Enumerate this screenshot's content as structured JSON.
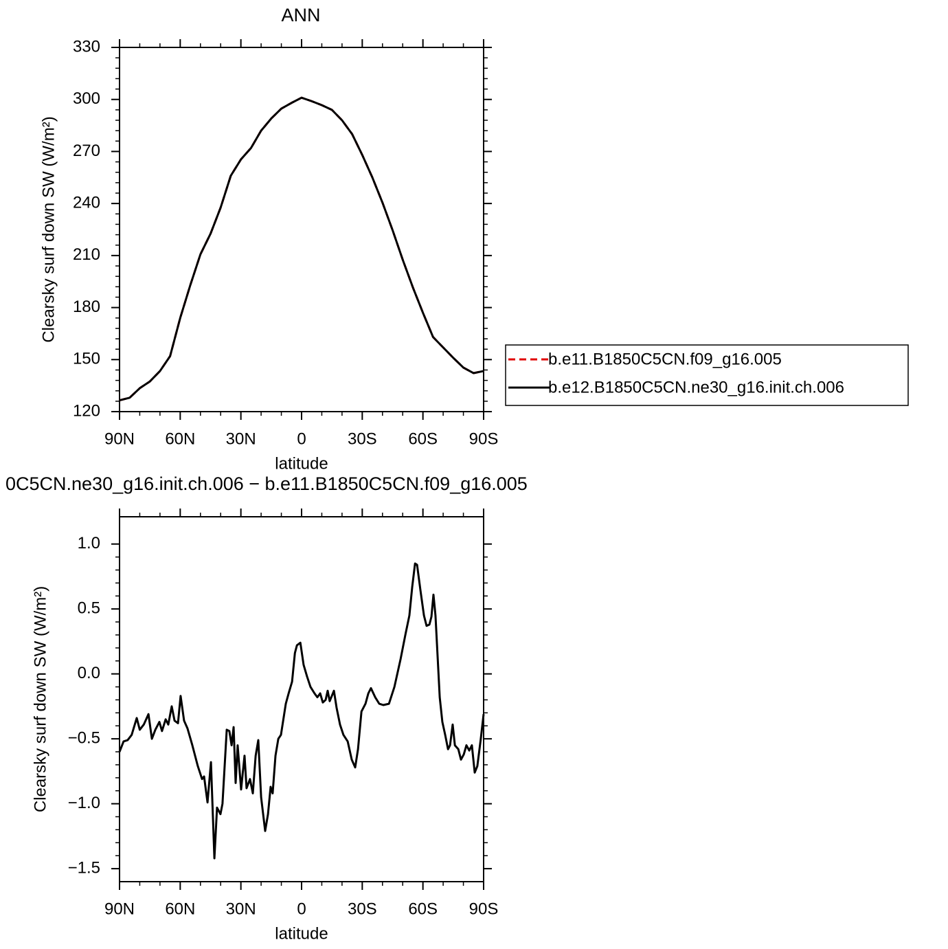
{
  "chart_data": [
    {
      "type": "line",
      "title": "ANN",
      "xlabel": "latitude",
      "ylabel": "Clearsky surf down SW (W/m²)",
      "x": [
        90,
        85,
        80,
        75,
        70,
        65,
        60,
        55,
        50,
        45,
        40,
        35,
        30,
        25,
        20,
        15,
        10,
        5,
        0,
        -5,
        -10,
        -15,
        -20,
        -25,
        -30,
        -35,
        -40,
        -45,
        -50,
        -55,
        -60,
        -65,
        -70,
        -75,
        -80,
        -85,
        -90
      ],
      "series": [
        {
          "name": "b.e11.B1850C5CN.f09_g16.005",
          "color": "#e00000",
          "line_style": "dashed",
          "values": [
            126.5,
            128,
            133.5,
            137.4,
            143.4,
            152,
            174,
            193,
            210.7,
            222.6,
            237.7,
            256,
            265.4,
            272,
            282,
            289,
            294.7,
            298,
            301,
            299,
            296.7,
            294,
            288,
            280,
            268,
            255,
            240.5,
            224.6,
            207.6,
            191.7,
            177,
            163,
            157,
            151,
            145.4,
            142.2,
            143.4
          ]
        },
        {
          "name": "b.e12.B1850C5CN.ne30_g16.init.ch.006",
          "color": "#000000",
          "line_style": "solid",
          "values": [
            126.5,
            128,
            133.5,
            137.4,
            143.4,
            152,
            174,
            193,
            210.7,
            222.6,
            237.7,
            256,
            265.4,
            272,
            282,
            289,
            294.7,
            298,
            301,
            299,
            296.7,
            294,
            288,
            280,
            268,
            255,
            240.5,
            224.6,
            207.6,
            191.7,
            177,
            163,
            157,
            151,
            145.4,
            142.2,
            143.4
          ]
        }
      ],
      "xlim": [
        90,
        -90
      ],
      "xticks": [
        {
          "value": 90,
          "label": "90N"
        },
        {
          "value": 60,
          "label": "60N"
        },
        {
          "value": 30,
          "label": "30N"
        },
        0,
        {
          "value": -30,
          "label": "30S"
        },
        {
          "value": -60,
          "label": "60S"
        },
        {
          "value": -90,
          "label": "90S"
        }
      ],
      "ylim": [
        120,
        330
      ],
      "yticks": [
        120,
        150,
        180,
        210,
        240,
        270,
        300,
        330
      ],
      "legend": "right"
    },
    {
      "type": "line",
      "title": "0C5CN.ne30_g16.init.ch.006 − b.e11.B1850C5CN.f09_g16.005",
      "xlabel": "latitude",
      "ylabel": "Clearsky surf down SW (W/m²)",
      "x": [
        90,
        88,
        86,
        84,
        81.5,
        80,
        78,
        75.7,
        74,
        72.3,
        70.3,
        69,
        67.2,
        65.9,
        64.2,
        62.8,
        61.1,
        59.8,
        58.1,
        56.4,
        54,
        51.3,
        49.2,
        48.2,
        46.5,
        44.8,
        43.1,
        41.8,
        40.1,
        39.1,
        37,
        35.7,
        34.6,
        33.6,
        32.6,
        31.6,
        29.9,
        28.2,
        27.2,
        25.5,
        24.1,
        22.7,
        21.4,
        20,
        18,
        16.6,
        15.3,
        14.3,
        12.9,
        11.5,
        10.2,
        7.8,
        6.4,
        4.7,
        3.3,
        2.3,
        0.6,
        -1,
        -2.7,
        -4.4,
        -6.4,
        -7.8,
        -9.2,
        -10.5,
        -11.9,
        -12.9,
        -13.9,
        -16,
        -17.3,
        -19,
        -20.7,
        -22.8,
        -24.8,
        -26.5,
        -27.9,
        -29.6,
        -31.6,
        -33,
        -34.3,
        -36.4,
        -38.4,
        -40.4,
        -43.2,
        -45.9,
        -48.9,
        -51.3,
        -53.3,
        -54.7,
        -56.1,
        -57.1,
        -58.8,
        -60.5,
        -61.8,
        -63.2,
        -64.2,
        -65.2,
        -66.2,
        -68.3,
        -69.6,
        -71,
        -72.4,
        -73.4,
        -74.7,
        -75.8,
        -77.5,
        -78.8,
        -80.2,
        -81.5,
        -82.9,
        -84.2,
        -85.6,
        -86.9,
        -88.6,
        -90
      ],
      "series": [
        {
          "color": "#000000",
          "line_style": "solid",
          "values": [
            -0.6,
            -0.52,
            -0.51,
            -0.47,
            -0.34,
            -0.43,
            -0.39,
            -0.31,
            -0.5,
            -0.43,
            -0.37,
            -0.44,
            -0.35,
            -0.39,
            -0.25,
            -0.36,
            -0.38,
            -0.17,
            -0.36,
            -0.42,
            -0.55,
            -0.71,
            -0.81,
            -0.79,
            -0.99,
            -0.68,
            -1.42,
            -1.03,
            -1.08,
            -1,
            -0.43,
            -0.44,
            -0.55,
            -0.41,
            -0.84,
            -0.55,
            -0.89,
            -0.63,
            -0.88,
            -0.81,
            -0.92,
            -0.63,
            -0.51,
            -0.95,
            -1.21,
            -1.08,
            -0.87,
            -0.92,
            -0.63,
            -0.5,
            -0.47,
            -0.23,
            -0.15,
            -0.06,
            0.16,
            0.22,
            0.24,
            0.07,
            -0.02,
            -0.1,
            -0.15,
            -0.18,
            -0.15,
            -0.22,
            -0.2,
            -0.13,
            -0.21,
            -0.13,
            -0.26,
            -0.39,
            -0.47,
            -0.52,
            -0.66,
            -0.72,
            -0.58,
            -0.29,
            -0.23,
            -0.15,
            -0.11,
            -0.18,
            -0.23,
            -0.24,
            -0.23,
            -0.1,
            0.11,
            0.3,
            0.45,
            0.67,
            0.85,
            0.84,
            0.64,
            0.45,
            0.37,
            0.38,
            0.44,
            0.61,
            0.45,
            -0.18,
            -0.37,
            -0.47,
            -0.58,
            -0.55,
            -0.39,
            -0.55,
            -0.58,
            -0.66,
            -0.62,
            -0.55,
            -0.59,
            -0.55,
            -0.76,
            -0.71,
            -0.5,
            -0.31
          ]
        }
      ],
      "xlim": [
        90,
        -90
      ],
      "xticks": [
        {
          "value": 90,
          "label": "90N"
        },
        {
          "value": 60,
          "label": "60N"
        },
        {
          "value": 30,
          "label": "30N"
        },
        0,
        {
          "value": -30,
          "label": "30S"
        },
        {
          "value": -60,
          "label": "60S"
        },
        {
          "value": -90,
          "label": "90S"
        }
      ],
      "ylim": [
        -1.6,
        1.21
      ],
      "yticks": [
        {
          "value": -1.5,
          "label": "−1.5"
        },
        {
          "value": -1,
          "label": "−1.0"
        },
        {
          "value": -0.5,
          "label": "−0.5"
        },
        {
          "value": 0,
          "label": "0.0"
        },
        0.5,
        {
          "value": 1,
          "label": "1.0"
        }
      ]
    }
  ]
}
